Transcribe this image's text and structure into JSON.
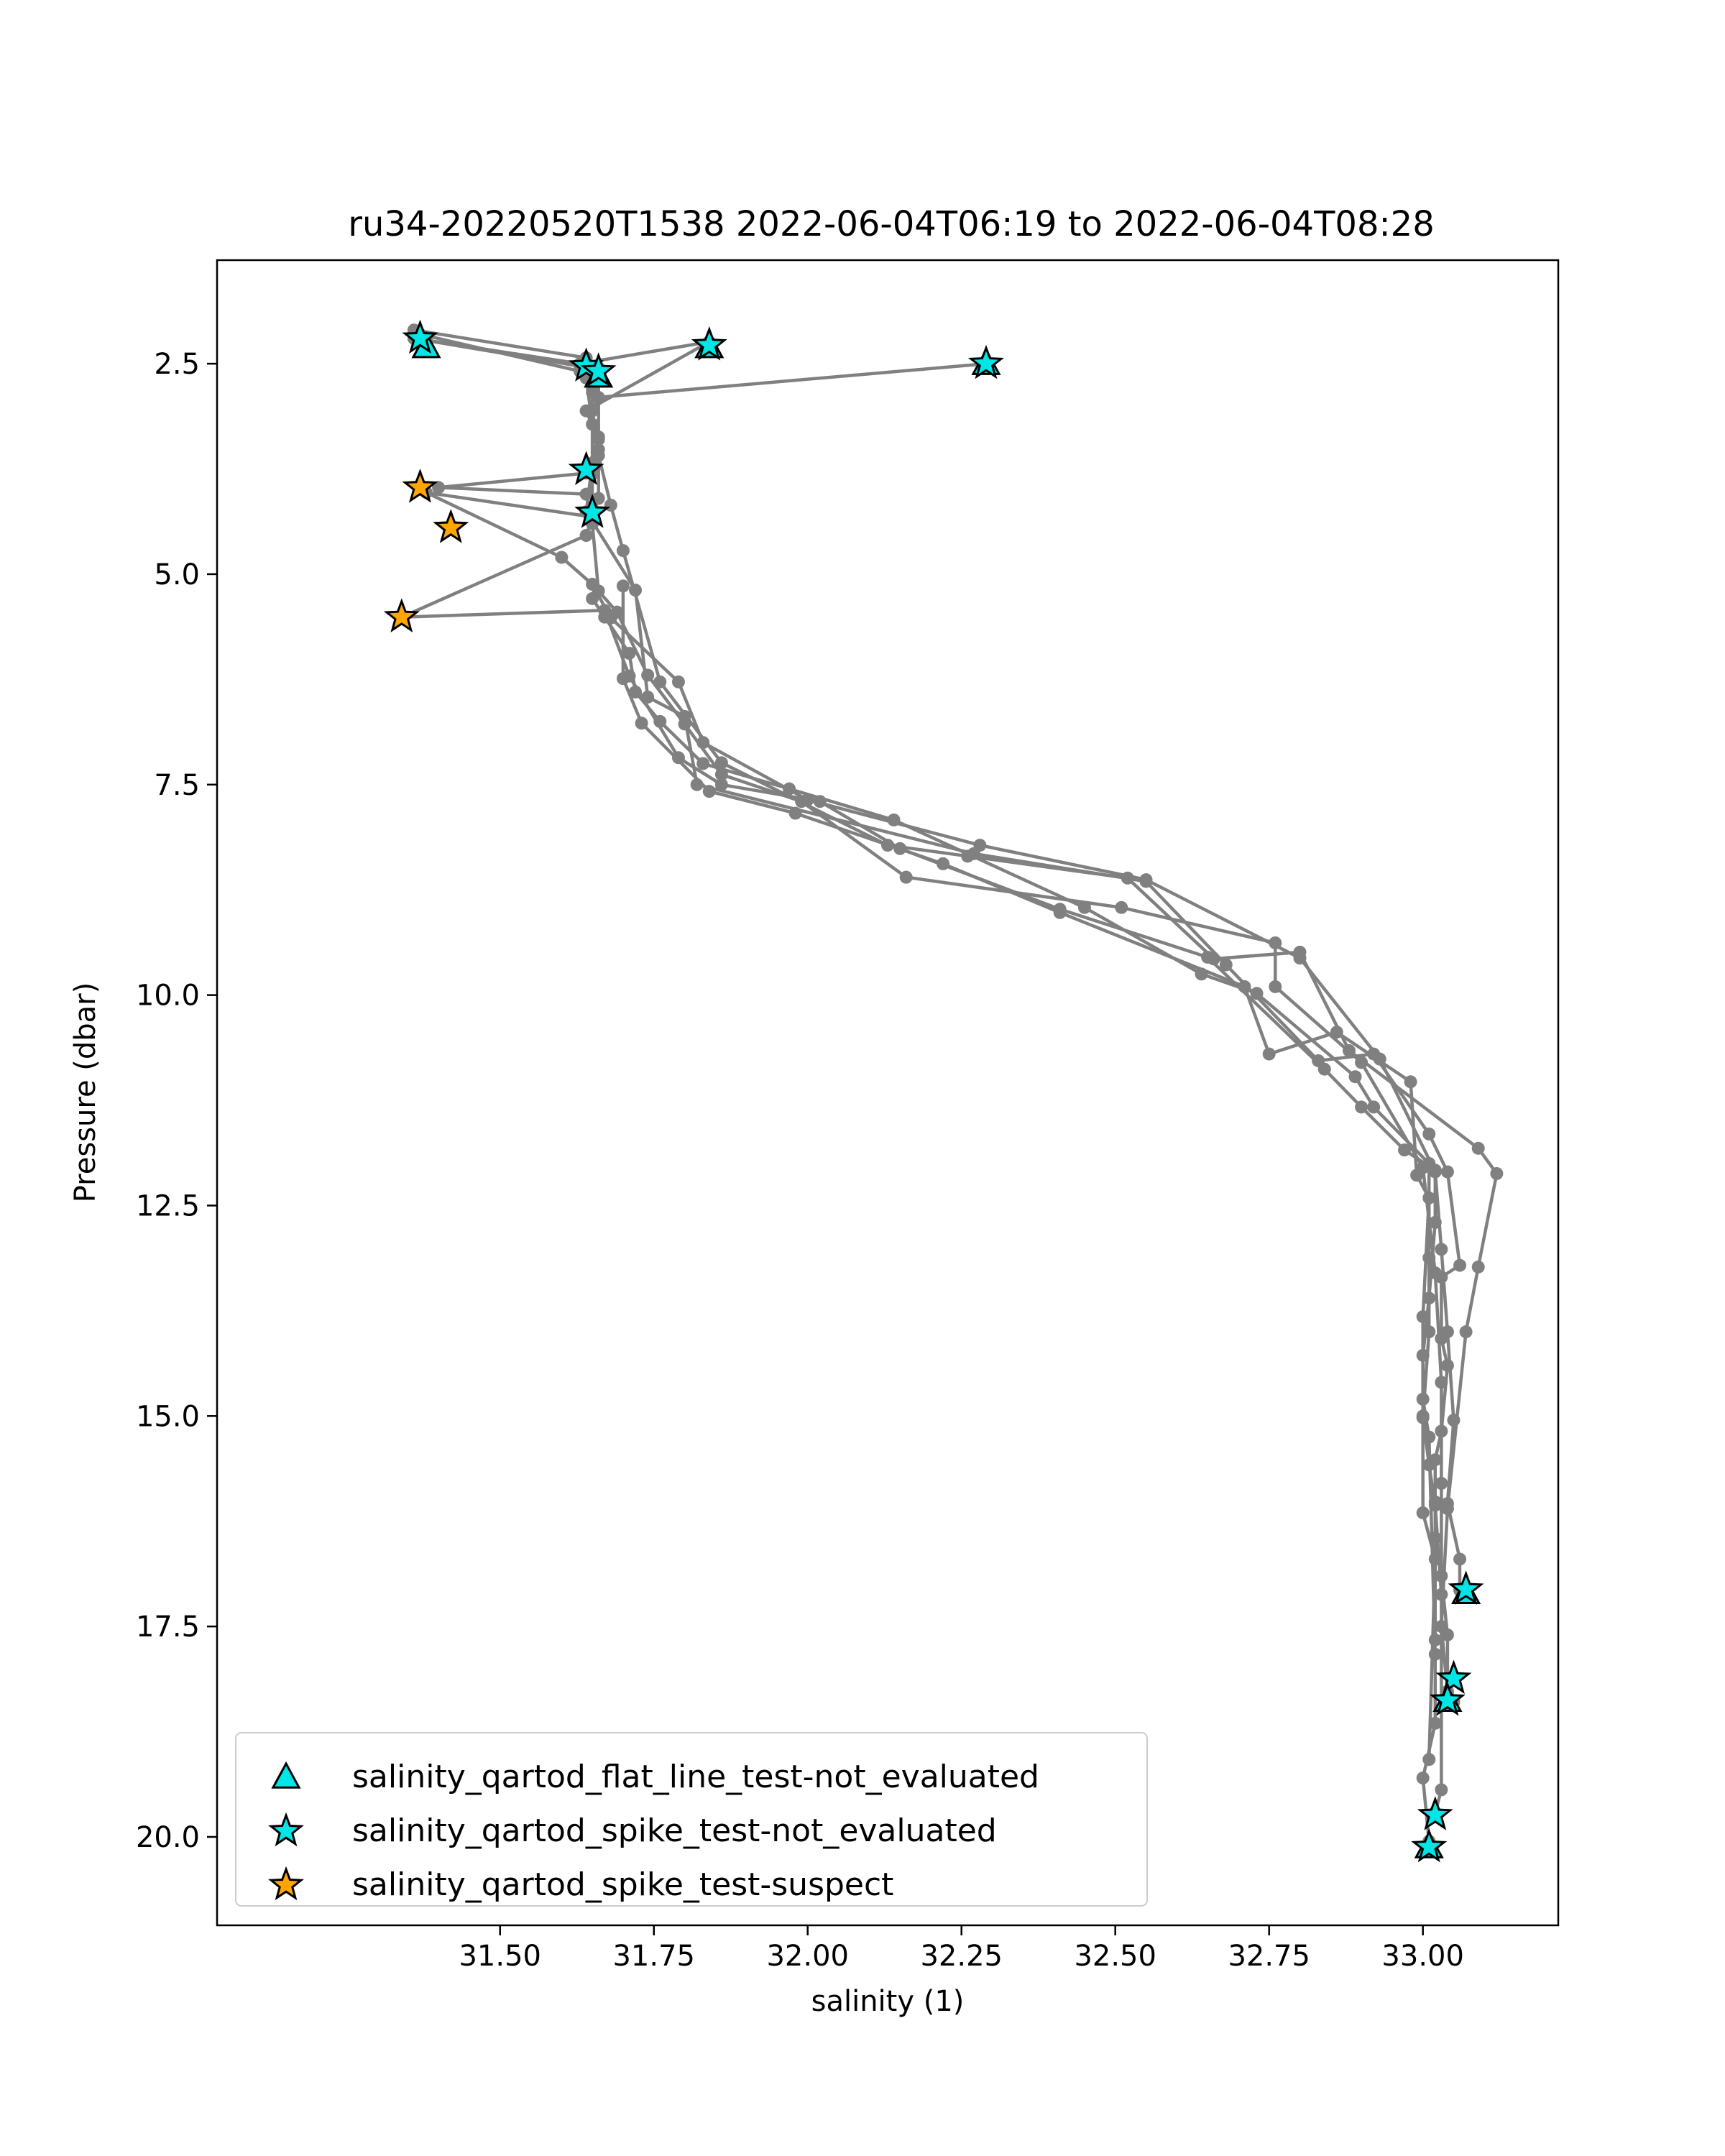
{
  "chart_data": {
    "type": "scatter",
    "title": "ru34-20220520T1538 2022-06-04T06:19 to 2022-06-04T08:28",
    "xlabel": "salinity (1)",
    "ylabel": "Pressure (dbar)",
    "xlim": [
      31.04,
      33.22
    ],
    "ylim": [
      21.05,
      1.27
    ],
    "y_inverted": true,
    "xticks": [
      "31.50",
      "31.75",
      "32.00",
      "32.25",
      "32.50",
      "32.75",
      "33.00"
    ],
    "yticks": [
      "2.5",
      "5.0",
      "7.5",
      "10.0",
      "12.5",
      "15.0",
      "17.5",
      "20.0"
    ],
    "grid": false,
    "legend_position": "lower-left",
    "line_color": "#808080",
    "profiles": [
      {
        "x": [
          31.38,
          31.63,
          31.84,
          31.64,
          31.66,
          31.64,
          31.4,
          31.64,
          31.65,
          31.66,
          31.69,
          31.74,
          31.8,
          31.86,
          31.99,
          32.16,
          32.51,
          32.76,
          32.76,
          32.9,
          33.0,
          33.02,
          33.03,
          33.03,
          33.03,
          33.04,
          33.04,
          33.05
        ],
        "y": [
          2.22,
          2.5,
          2.24,
          3.06,
          3.4,
          3.8,
          3.97,
          4.05,
          4.4,
          5.2,
          5.45,
          6.2,
          6.78,
          7.38,
          7.7,
          8.6,
          8.96,
          9.38,
          9.9,
          10.8,
          12.05,
          13.3,
          14.6,
          15.8,
          16.9,
          17.6,
          18.3,
          18.4
        ]
      },
      {
        "x": [
          31.37,
          31.63,
          31.66,
          31.66,
          31.65,
          31.65,
          31.38,
          31.6,
          31.65,
          31.68,
          31.79,
          31.83,
          32.0,
          32.28,
          32.55,
          32.8,
          32.93,
          33.02,
          33.03,
          33.04,
          33.05,
          33.04,
          33.06,
          33.06,
          33.07
        ],
        "y": [
          2.15,
          2.59,
          2.59,
          3.37,
          3.81,
          4.32,
          4.03,
          4.8,
          5.12,
          5.52,
          6.28,
          7.0,
          7.68,
          8.22,
          8.63,
          9.56,
          10.76,
          12.1,
          13.02,
          14.0,
          15.05,
          16.04,
          16.7,
          17.07,
          17.1
        ]
      },
      {
        "x": [
          31.36,
          31.64,
          31.64,
          31.65,
          31.66,
          31.68,
          31.7,
          31.76,
          31.86,
          32.13,
          32.26,
          32.52,
          32.66,
          32.8,
          32.88,
          33.09,
          33.12,
          33.09,
          33.07,
          33.04,
          33.03,
          33.04
        ],
        "y": [
          2.1,
          2.43,
          2.67,
          3.22,
          3.59,
          4.18,
          4.72,
          6.28,
          7.24,
          8.22,
          8.35,
          8.61,
          9.57,
          9.49,
          10.66,
          11.82,
          12.12,
          13.23,
          14.0,
          16.1,
          17.5,
          18.27
        ]
      },
      {
        "x": [
          31.36,
          31.63,
          31.66,
          31.65,
          31.65,
          31.64,
          31.72,
          31.74,
          31.8,
          31.82,
          32.27,
          32.55,
          32.68,
          32.83,
          32.92,
          33.01,
          33.04,
          33.06,
          33.03,
          33.03,
          33.04,
          33.03,
          33.02,
          33.02,
          33.02,
          33.02
        ],
        "y": [
          2.2,
          2.53,
          2.55,
          2.84,
          3.68,
          4.26,
          5.19,
          6.46,
          6.69,
          7.5,
          8.32,
          8.65,
          9.64,
          10.78,
          10.7,
          11.65,
          12.1,
          13.21,
          13.35,
          14.08,
          14.4,
          15.18,
          15.52,
          16.02,
          16.45,
          17.66
        ]
      },
      {
        "x": [
          32.29,
          31.66,
          31.65,
          31.66,
          31.66,
          31.64,
          31.34,
          31.67,
          31.71,
          31.79,
          31.86,
          32.02,
          32.15,
          32.41,
          32.65,
          32.84,
          32.9,
          32.97,
          33.02,
          33.02,
          33.01,
          33.0,
          33.0,
          33.01,
          33.02,
          33.03,
          33.03,
          33.02
        ],
        "y": [
          2.5,
          2.9,
          3.06,
          3.52,
          4.1,
          4.54,
          5.51,
          5.43,
          6.21,
          7.18,
          7.5,
          7.7,
          8.26,
          8.98,
          9.55,
          10.88,
          11.33,
          11.84,
          12.08,
          12.7,
          13.6,
          14.28,
          15.0,
          15.58,
          16.06,
          17.12,
          19.44,
          19.71
        ]
      },
      {
        "x": [
          31.7,
          31.7,
          31.73,
          31.84,
          31.98,
          32.22,
          32.41,
          32.71,
          32.75,
          32.86,
          32.98,
          32.99,
          33.01,
          33.0,
          33.0,
          33.01,
          33.02,
          33.02,
          33.0,
          33.01,
          33.01
        ],
        "y": [
          5.14,
          6.24,
          6.77,
          7.58,
          7.84,
          8.44,
          9.02,
          9.9,
          10.7,
          10.44,
          11.03,
          12.14,
          12.41,
          13.82,
          14.8,
          15.25,
          17.83,
          18.65,
          19.3,
          20.05,
          20.12
        ]
      },
      {
        "x": [
          31.65,
          31.67,
          31.71,
          31.72,
          31.76,
          31.83,
          31.97,
          32.14,
          32.45,
          32.64,
          32.73,
          32.89,
          32.92,
          33.01,
          33.01,
          33.01,
          33.0,
          33.0,
          33.02,
          33.01
        ],
        "y": [
          5.29,
          5.51,
          5.94,
          6.4,
          6.75,
          7.25,
          7.55,
          7.92,
          8.96,
          9.75,
          9.98,
          10.97,
          11.33,
          12.0,
          13.12,
          14.0,
          15.02,
          16.15,
          16.7,
          19.08
        ]
      }
    ],
    "series": [
      {
        "name": "salinity_qartod_flat_line_test-not_evaluated",
        "marker": "triangle",
        "color": "#00e6e6",
        "x": [
          31.38,
          31.84,
          31.66,
          32.29,
          33.07,
          33.04,
          33.01
        ],
        "y": [
          2.3,
          2.3,
          2.65,
          2.5,
          17.1,
          18.38,
          20.12
        ]
      },
      {
        "name": "salinity_qartod_spike_test-not_evaluated",
        "marker": "star",
        "color": "#00e6e6",
        "x": [
          31.37,
          31.84,
          31.64,
          31.66,
          32.29,
          31.64,
          31.65,
          33.07,
          33.05,
          33.04,
          33.02,
          33.01
        ],
        "y": [
          2.2,
          2.28,
          2.53,
          2.59,
          2.5,
          3.76,
          4.27,
          17.06,
          18.12,
          18.38,
          19.74,
          20.12
        ]
      },
      {
        "name": "salinity_qartod_spike_test-suspect",
        "marker": "star",
        "color": "#ffa500",
        "x": [
          31.37,
          31.42,
          31.34
        ],
        "y": [
          3.97,
          4.45,
          5.51
        ]
      }
    ]
  }
}
